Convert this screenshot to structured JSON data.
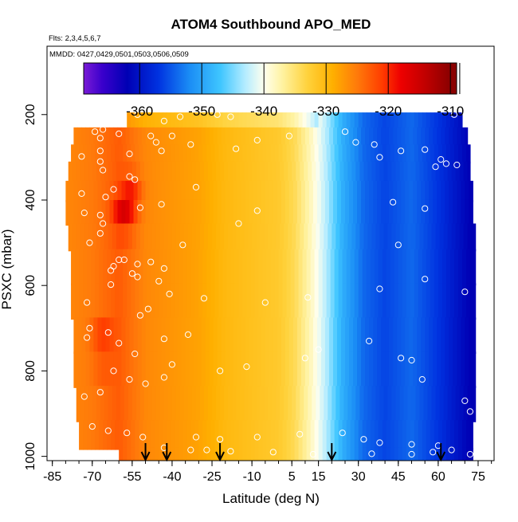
{
  "chart_data": {
    "type": "heatmap",
    "title": "ATOM4 Southbound APO_MED",
    "flights_note": "Flts: 2,3,4,5,6,7",
    "dates_note": "MMDD: 0427,0429,0501,0503,0506,0509",
    "xlabel": "Latitude (deg N)",
    "ylabel": "PSXC (mbar)",
    "xlim": [
      -87,
      81
    ],
    "ylim": [
      1010,
      40
    ],
    "x_ticks": [
      -85,
      -70,
      -55,
      -40,
      -25,
      -10,
      5,
      15,
      30,
      45,
      60,
      75
    ],
    "y_ticks": [
      200,
      400,
      600,
      800,
      1000
    ],
    "colorbar": {
      "ticks": [
        -360,
        -350,
        -340,
        -330,
        -320,
        -310
      ],
      "range": [
        -369,
        -309
      ],
      "stops": [
        {
          "value": -369,
          "color": "#7a1bd6"
        },
        {
          "value": -366,
          "color": "#3a00cc"
        },
        {
          "value": -362,
          "color": "#0000b4"
        },
        {
          "value": -357,
          "color": "#0032e0"
        },
        {
          "value": -352,
          "color": "#1a8cf5"
        },
        {
          "value": -347,
          "color": "#3fc6ff"
        },
        {
          "value": -343,
          "color": "#b4ecff"
        },
        {
          "value": -340,
          "color": "#ffffee"
        },
        {
          "value": -337,
          "color": "#fff2a0"
        },
        {
          "value": -333,
          "color": "#ffd23c"
        },
        {
          "value": -329,
          "color": "#ffb000"
        },
        {
          "value": -325,
          "color": "#ff7a0a"
        },
        {
          "value": -321,
          "color": "#ff3c00"
        },
        {
          "value": -318,
          "color": "#ee0000"
        },
        {
          "value": -314,
          "color": "#c00000"
        },
        {
          "value": -310,
          "color": "#8a0000"
        }
      ]
    },
    "field_profile": [
      {
        "lat": -80,
        "value": -326
      },
      {
        "lat": -70,
        "value": -325
      },
      {
        "lat": -60,
        "value": -323
      },
      {
        "lat": -50,
        "value": -326
      },
      {
        "lat": -40,
        "value": -327
      },
      {
        "lat": -30,
        "value": -328
      },
      {
        "lat": -20,
        "value": -330
      },
      {
        "lat": -10,
        "value": -331
      },
      {
        "lat": 0,
        "value": -332
      },
      {
        "lat": 6,
        "value": -334
      },
      {
        "lat": 12,
        "value": -338
      },
      {
        "lat": 18,
        "value": -343
      },
      {
        "lat": 24,
        "value": -349
      },
      {
        "lat": 32,
        "value": -354
      },
      {
        "lat": 40,
        "value": -356
      },
      {
        "lat": 50,
        "value": -354
      },
      {
        "lat": 60,
        "value": -357
      },
      {
        "lat": 72,
        "value": -362
      }
    ],
    "hotspots": [
      {
        "lat": -58,
        "p": 440,
        "value": -315
      },
      {
        "lat": -66,
        "p": 750,
        "value": -317
      },
      {
        "lat": -56,
        "p": 380,
        "value": -319
      }
    ],
    "profiles": [
      {
        "lat_range": [
          -57,
          69
        ],
        "p_range": [
          195,
          240
        ]
      },
      {
        "lat_range": [
          -77,
          71
        ],
        "p_range": [
          230,
          275
        ]
      },
      {
        "lat_range": [
          -78,
          72
        ],
        "p_range": [
          270,
          315
        ]
      },
      {
        "lat_range": [
          -79,
          72
        ],
        "p_range": [
          310,
          360
        ]
      },
      {
        "lat_range": [
          -80,
          73
        ],
        "p_range": [
          355,
          405
        ]
      },
      {
        "lat_range": [
          -80,
          73
        ],
        "p_range": [
          400,
          460
        ]
      },
      {
        "lat_range": [
          -79,
          74
        ],
        "p_range": [
          455,
          520
        ]
      },
      {
        "lat_range": [
          -78,
          74
        ],
        "p_range": [
          515,
          600
        ]
      },
      {
        "lat_range": [
          -78,
          74
        ],
        "p_range": [
          595,
          680
        ]
      },
      {
        "lat_range": [
          -77,
          74
        ],
        "p_range": [
          675,
          760
        ]
      },
      {
        "lat_range": [
          -77,
          74
        ],
        "p_range": [
          755,
          840
        ]
      },
      {
        "lat_range": [
          -76,
          74
        ],
        "p_range": [
          835,
          920
        ]
      },
      {
        "lat_range": [
          -75,
          73
        ],
        "p_range": [
          915,
          985
        ]
      },
      {
        "lat_range": [
          -60,
          73
        ],
        "p_range": [
          980,
          1010
        ]
      }
    ],
    "sample_points": [
      [
        -53,
        200
      ],
      [
        -37,
        205
      ],
      [
        -43,
        215
      ],
      [
        -72,
        215
      ],
      [
        -66,
        235
      ],
      [
        -69,
        240
      ],
      [
        -60,
        245
      ],
      [
        -48,
        250
      ],
      [
        -40,
        250
      ],
      [
        -67,
        255
      ],
      [
        -23,
        200
      ],
      [
        -18,
        205
      ],
      [
        -46,
        265
      ],
      [
        -33,
        270
      ],
      [
        -16,
        280
      ],
      [
        -67,
        285
      ],
      [
        -56,
        292
      ],
      [
        -44,
        285
      ],
      [
        -67,
        310
      ],
      [
        -74,
        298
      ],
      [
        -8,
        260
      ],
      [
        4,
        250
      ],
      [
        25,
        240
      ],
      [
        70,
        195
      ],
      [
        66,
        200
      ],
      [
        29,
        265
      ],
      [
        36,
        270
      ],
      [
        46,
        285
      ],
      [
        55,
        282
      ],
      [
        38,
        300
      ],
      [
        63,
        315
      ],
      [
        67,
        318
      ],
      [
        59,
        322
      ],
      [
        61,
        305
      ],
      [
        -66,
        330
      ],
      [
        -56,
        345
      ],
      [
        -54,
        352
      ],
      [
        -74,
        385
      ],
      [
        -62,
        375
      ],
      [
        -65,
        393
      ],
      [
        -31,
        370
      ],
      [
        -52,
        418
      ],
      [
        -44,
        410
      ],
      [
        -73,
        430
      ],
      [
        -67,
        435
      ],
      [
        -66,
        455
      ],
      [
        -15,
        455
      ],
      [
        -8,
        425
      ],
      [
        43,
        405
      ],
      [
        55,
        420
      ],
      [
        -67,
        478
      ],
      [
        -71,
        500
      ],
      [
        -36,
        505
      ],
      [
        -60,
        540
      ],
      [
        -62,
        555
      ],
      [
        -58,
        540
      ],
      [
        -48,
        545
      ],
      [
        -53,
        550
      ],
      [
        -43,
        560
      ],
      [
        -80,
        555
      ],
      [
        -63,
        565
      ],
      [
        -45,
        590
      ],
      [
        -53,
        580
      ],
      [
        -55,
        572
      ],
      [
        -63,
        598
      ],
      [
        -41,
        620
      ],
      [
        -28,
        630
      ],
      [
        -72,
        640
      ],
      [
        -52,
        670
      ],
      [
        -49,
        655
      ],
      [
        -5,
        640
      ],
      [
        11,
        628
      ],
      [
        38,
        608
      ],
      [
        55,
        585
      ],
      [
        45,
        505
      ],
      [
        70,
        615
      ],
      [
        -71,
        700
      ],
      [
        -64,
        710
      ],
      [
        -72,
        722
      ],
      [
        -60,
        735
      ],
      [
        -43,
        725
      ],
      [
        -34,
        715
      ],
      [
        -54,
        760
      ],
      [
        -62,
        800
      ],
      [
        -56,
        820
      ],
      [
        -67,
        850
      ],
      [
        -73,
        860
      ],
      [
        -50,
        830
      ],
      [
        -40,
        785
      ],
      [
        -43,
        815
      ],
      [
        -22,
        800
      ],
      [
        -12,
        790
      ],
      [
        10,
        770
      ],
      [
        15,
        750
      ],
      [
        34,
        730
      ],
      [
        46,
        770
      ],
      [
        50,
        775
      ],
      [
        54,
        820
      ],
      [
        70,
        870
      ],
      [
        72,
        895
      ],
      [
        -70,
        930
      ],
      [
        -64,
        940
      ],
      [
        -57,
        945
      ],
      [
        -51,
        955
      ],
      [
        -31,
        955
      ],
      [
        -22,
        960
      ],
      [
        -8,
        955
      ],
      [
        8,
        948
      ],
      [
        24,
        945
      ],
      [
        32,
        960
      ],
      [
        38,
        968
      ],
      [
        50,
        972
      ],
      [
        60,
        975
      ],
      [
        65,
        985
      ],
      [
        -43,
        980
      ],
      [
        -33,
        985
      ],
      [
        -27,
        985
      ],
      [
        -18,
        988
      ],
      [
        -2,
        990
      ],
      [
        13,
        995
      ],
      [
        35,
        994
      ],
      [
        50,
        995
      ],
      [
        58,
        990
      ],
      [
        72,
        995
      ]
    ],
    "flight_arrows": [
      -50,
      -42,
      -22,
      20,
      61
    ]
  }
}
